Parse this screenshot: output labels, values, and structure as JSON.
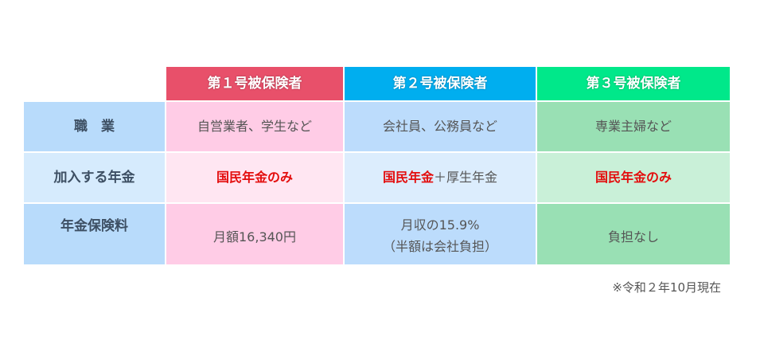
{
  "colors": {
    "header1": "#e8506a",
    "header2": "#00aeef",
    "header3": "#00e88a",
    "accent_red": "#e30d0d"
  },
  "headers": [
    "第１号被保険者",
    "第２号被保険者",
    "第３号被保険者"
  ],
  "rows": [
    {
      "label": "職　業",
      "cells": [
        "自営業者、学生など",
        "会社員、公務員など",
        "専業主婦など"
      ]
    },
    {
      "label": "加入する年金",
      "cells": [
        {
          "red": "国民年金のみ",
          "rest": ""
        },
        {
          "red": "国民年金",
          "rest": "＋厚生年金"
        },
        {
          "red": "国民年金のみ",
          "rest": ""
        }
      ]
    },
    {
      "label": "年金保険料",
      "cells": [
        {
          "line1": "月額16,340円"
        },
        {
          "line1": "月収の15.9%",
          "line2": "（半額は会社負担）"
        },
        {
          "line1": "負担なし"
        }
      ]
    }
  ],
  "note": "※令和２年10月現在"
}
